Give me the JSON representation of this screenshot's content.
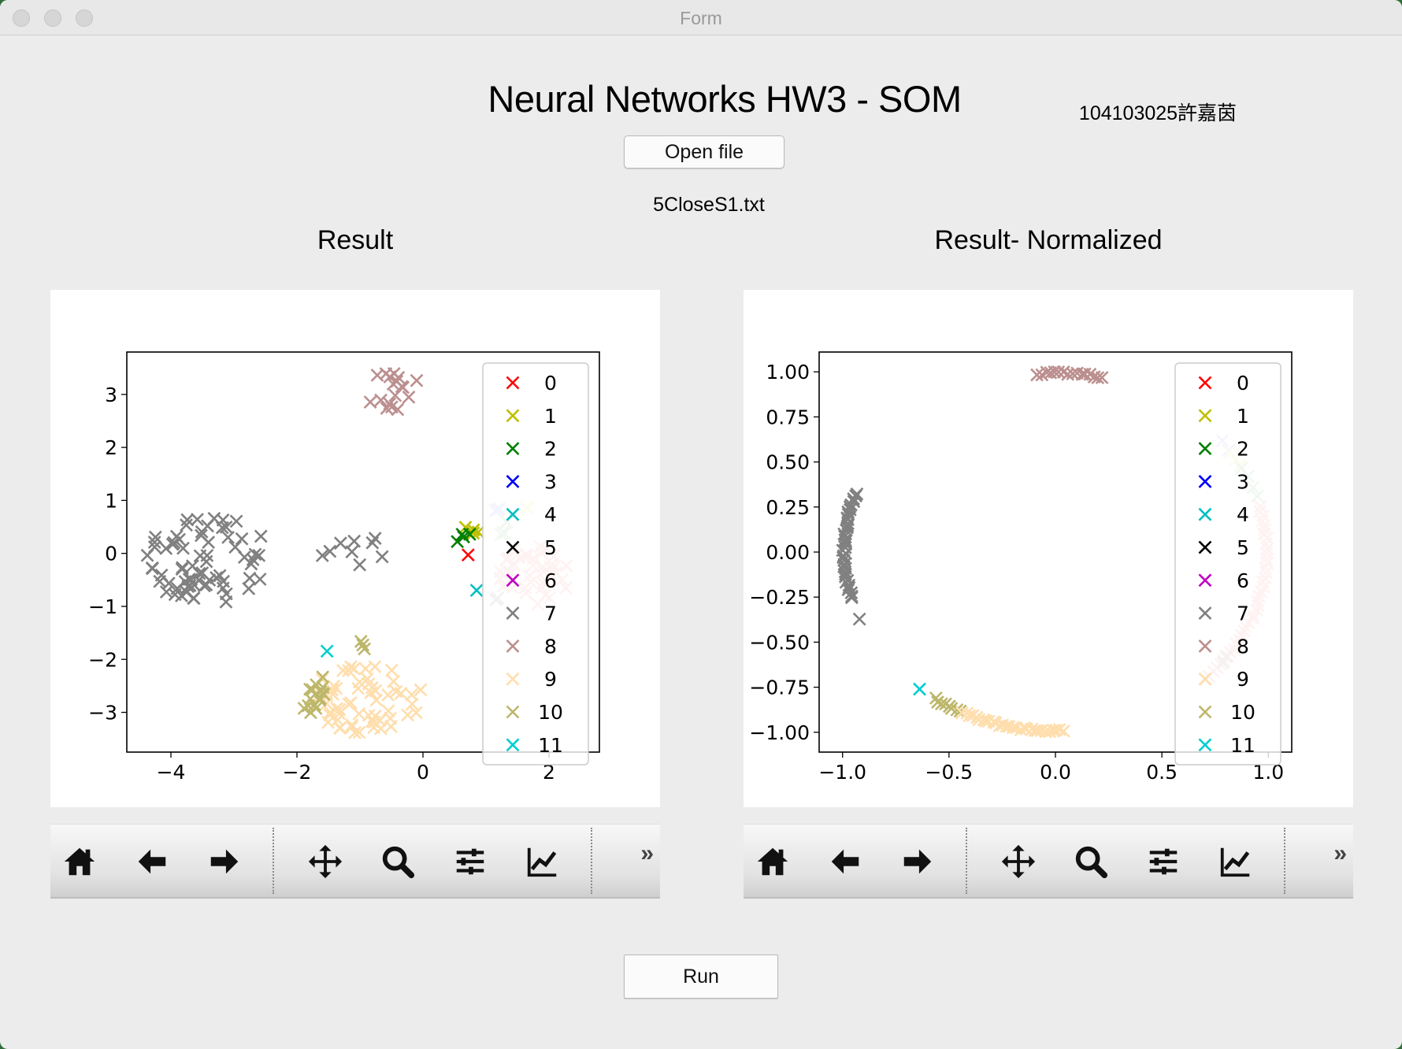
{
  "window": {
    "title": "Form"
  },
  "header": {
    "app_title": "Neural Networks HW3 - SOM",
    "student": "104103025許嘉茵",
    "open_button": "Open file",
    "filename": "5CloseS1.txt",
    "run_button": "Run"
  },
  "plots": {
    "left_title": "Result",
    "right_title": "Result- Normalized"
  },
  "toolbar_icons": [
    "home-icon",
    "back-arrow-icon",
    "forward-arrow-icon",
    "pan-icon",
    "zoom-icon",
    "subplots-config-icon",
    "edit-axis-icon",
    "more-icon"
  ],
  "legend_colors": {
    "0": "#ff0000",
    "1": "#bfbf00",
    "2": "#008000",
    "3": "#0000ff",
    "4": "#00bfbf",
    "5": "#000000",
    "6": "#bf00bf",
    "7": "#808080",
    "8": "#bc8f8f",
    "9": "#ffdead",
    "10": "#bdb76b",
    "11": "#00ced1"
  },
  "chart_data": [
    {
      "type": "scatter",
      "title": "Result",
      "xlim": [
        -4.7,
        2.8
      ],
      "ylim": [
        -3.75,
        3.8
      ],
      "xticks": [
        -4,
        -2,
        0,
        2
      ],
      "yticks": [
        -3,
        -2,
        -1,
        0,
        1,
        2,
        3
      ],
      "marker": "x",
      "legend": {
        "position": "upper right",
        "labels": [
          "0",
          "1",
          "2",
          "3",
          "4",
          "5",
          "6",
          "7",
          "8",
          "9",
          "10",
          "11"
        ]
      },
      "clusters": [
        {
          "label": "7",
          "cx": -3.4,
          "cy": -0.1,
          "rx": 1.0,
          "ry": 0.85,
          "n": 70
        },
        {
          "label": "7",
          "cx": -1.1,
          "cy": 0.0,
          "rx": 0.55,
          "ry": 0.4,
          "n": 9
        },
        {
          "label": "8",
          "cx": -0.45,
          "cy": 3.05,
          "rx": 0.45,
          "ry": 0.4,
          "n": 18
        },
        {
          "label": "9",
          "cx": -0.9,
          "cy": -2.75,
          "rx": 0.9,
          "ry": 0.65,
          "n": 60
        },
        {
          "label": "10",
          "cx": -1.75,
          "cy": -2.6,
          "rx": 0.2,
          "ry": 0.45,
          "n": 16
        },
        {
          "label": "10",
          "cx": -0.95,
          "cy": -1.7,
          "rx": 0.1,
          "ry": 0.12,
          "n": 3
        },
        {
          "label": "11",
          "cx": -1.55,
          "cy": -1.85,
          "rx": 0.03,
          "ry": 0.03,
          "n": 1
        },
        {
          "label": "6",
          "cx": 1.8,
          "cy": -0.4,
          "rx": 0.6,
          "ry": 0.6,
          "n": 40,
          "color": "#ffbcbc"
        },
        {
          "label": "1",
          "cx": 0.75,
          "cy": 0.45,
          "rx": 0.15,
          "ry": 0.1,
          "n": 4
        },
        {
          "label": "2",
          "cx": 0.65,
          "cy": 0.28,
          "rx": 0.15,
          "ry": 0.12,
          "n": 4
        },
        {
          "label": "0",
          "cx": 0.7,
          "cy": -0.05,
          "rx": 0.03,
          "ry": 0.03,
          "n": 1
        },
        {
          "label": "4",
          "cx": 0.85,
          "cy": -0.7,
          "rx": 0.03,
          "ry": 0.03,
          "n": 1
        },
        {
          "label": "3",
          "cx": 1.15,
          "cy": 0.85,
          "rx": 0.1,
          "ry": 0.08,
          "n": 3,
          "color": "#c8c8ff"
        },
        {
          "label": "2",
          "cx": 1.3,
          "cy": 0.5,
          "rx": 0.2,
          "ry": 0.15,
          "n": 5,
          "color": "#b8ddb8"
        },
        {
          "label": "1",
          "cx": 1.65,
          "cy": 0.9,
          "rx": 0.1,
          "ry": 0.08,
          "n": 2,
          "color": "#f0f0b0"
        },
        {
          "label": "7",
          "cx": 1.2,
          "cy": -0.85,
          "rx": 0.1,
          "ry": 0.08,
          "n": 2,
          "color": "#bcbcbc"
        }
      ]
    },
    {
      "type": "scatter",
      "title": "Result- Normalized",
      "xlim": [
        -1.11,
        1.11
      ],
      "ylim": [
        -1.11,
        1.11
      ],
      "xticks": [
        -1.0,
        -0.5,
        0.0,
        0.5,
        1.0
      ],
      "yticks": [
        -1.0,
        -0.75,
        -0.5,
        -0.25,
        0.0,
        0.25,
        0.5,
        0.75,
        1.0
      ],
      "marker": "x",
      "legend": {
        "position": "upper right",
        "labels": [
          "0",
          "1",
          "2",
          "3",
          "4",
          "5",
          "6",
          "7",
          "8",
          "9",
          "10",
          "11"
        ]
      },
      "arcs": [
        {
          "label": "8",
          "angle_deg": [
            77,
            95
          ],
          "n": 16
        },
        {
          "label": "7",
          "angle_deg": [
            161,
            195
          ],
          "n": 40
        },
        {
          "label": "7",
          "angle_deg": [
            202,
            203
          ],
          "n": 1
        },
        {
          "label": "11",
          "angle_deg": [
            230,
            231
          ],
          "n": 1
        },
        {
          "label": "10",
          "angle_deg": [
            235,
            243
          ],
          "n": 8
        },
        {
          "label": "9",
          "angle_deg": [
            244,
            272
          ],
          "n": 30
        },
        {
          "label": "6",
          "angle_deg": [
            -45,
            15
          ],
          "n": 40,
          "color": "#ffbcbc"
        },
        {
          "label": "7",
          "angle_deg": [
            -38,
            -36
          ],
          "n": 2,
          "color": "#bcbcbc"
        },
        {
          "label": "3",
          "angle_deg": [
            35,
            38
          ],
          "n": 2,
          "color": "#c8c8ff"
        },
        {
          "label": "1",
          "angle_deg": [
            29,
            34
          ],
          "n": 3,
          "color": "#f0f0b0"
        },
        {
          "label": "2",
          "angle_deg": [
            18,
            28
          ],
          "n": 4,
          "color": "#b8ddb8"
        }
      ]
    }
  ]
}
